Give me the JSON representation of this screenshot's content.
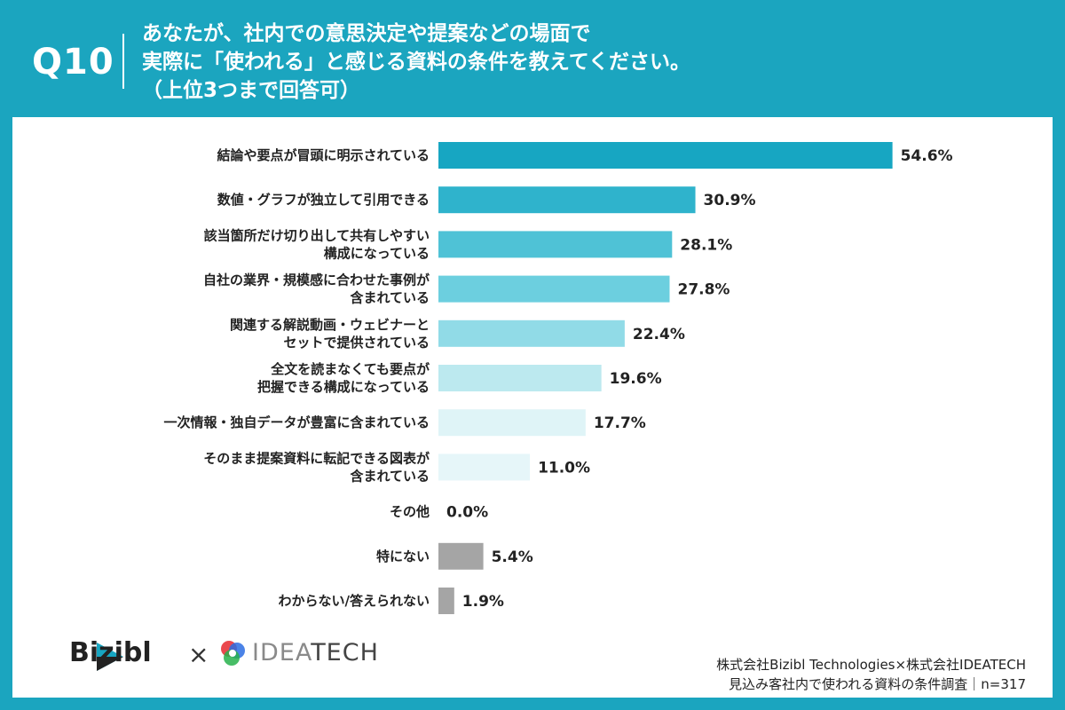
{
  "header": {
    "question_label": "Q10",
    "title_lines": [
      "あなたが、社内での意思決定や提案などの場面で",
      "実際に「使われる」と感じる資料の条件を教えてください。",
      "（上位3つまで回答可）"
    ]
  },
  "chart_data": {
    "type": "bar",
    "orientation": "horizontal",
    "value_unit": "%",
    "categories": [
      [
        "結論や要点が冒頭に明示されている"
      ],
      [
        "数値・グラフが独立して引用できる"
      ],
      [
        "該当箇所だけ切り出して共有しやすい",
        "構成になっている"
      ],
      [
        "自社の業界・規模感に合わせた事例が",
        "含まれている"
      ],
      [
        "関連する解説動画・ウェビナーと",
        "セットで提供されている"
      ],
      [
        "全文を読まなくても要点が",
        "把握できる構成になっている"
      ],
      [
        "一次情報・独自データが豊富に含まれている"
      ],
      [
        "そのまま提案資料に転記できる図表が",
        "含まれている"
      ],
      [
        "その他"
      ],
      [
        "特にない"
      ],
      [
        "わからない/答えられない"
      ]
    ],
    "values": [
      54.6,
      30.9,
      28.1,
      27.8,
      22.4,
      19.6,
      17.7,
      11.0,
      0.0,
      5.4,
      1.9
    ],
    "value_labels": [
      "54.6%",
      "30.9%",
      "28.1%",
      "27.8%",
      "22.4%",
      "19.6%",
      "17.7%",
      "11.0%",
      "0.0%",
      "5.4%",
      "1.9%"
    ],
    "bar_colors": [
      "#17a6c2",
      "#2fb3cc",
      "#4fc2d6",
      "#6ccfdf",
      "#91dbe7",
      "#bce9ef",
      "#dff4f7",
      "#e6f6f9",
      "#e6f6f9",
      "#a5a5a5",
      "#a5a5a5"
    ],
    "grid": false
  },
  "logos": {
    "bizibl": "Bizibl",
    "times": "×",
    "ideatech_light": "IDEA",
    "ideatech_dark": "TECH"
  },
  "source": {
    "line1": "株式会社Bizibl Technologies×株式会社IDEATECH",
    "line2": "見込み客社内で使われる資料の条件調査｜n=317"
  }
}
